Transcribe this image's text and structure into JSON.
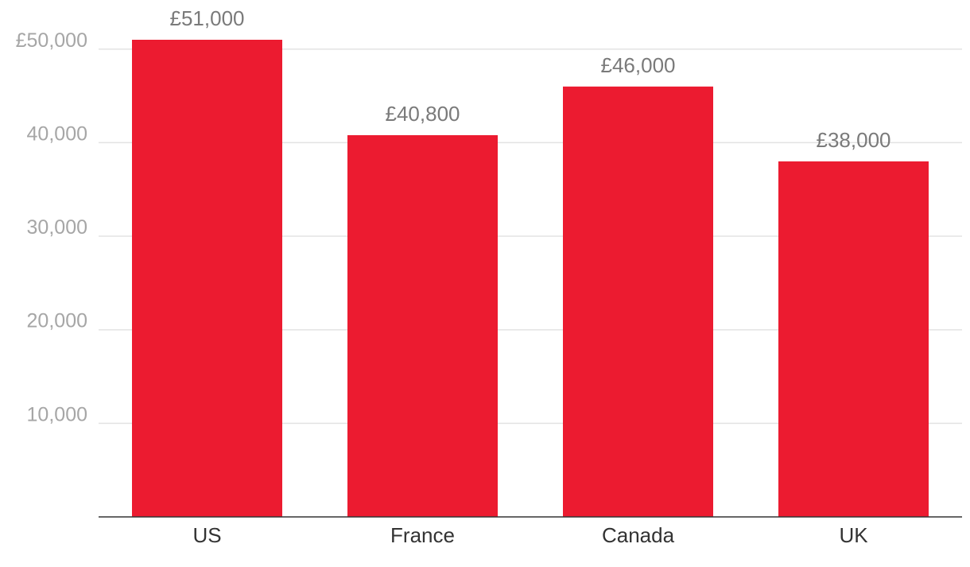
{
  "chart_data": {
    "type": "bar",
    "categories": [
      "US",
      "France",
      "Canada",
      "UK"
    ],
    "values": [
      51000,
      40800,
      46000,
      38000
    ],
    "data_labels": [
      "£51,000",
      "£40,800",
      "£46,000",
      "£38,000"
    ],
    "yticks": [
      10000,
      20000,
      30000,
      40000,
      50000
    ],
    "ytick_labels": [
      "10,000",
      "20,000",
      "30,000",
      "40,000",
      "£50,000"
    ],
    "ylim": [
      0,
      51000
    ],
    "grid": true,
    "legend": "none",
    "title": "",
    "xlabel": "",
    "ylabel": "",
    "colors": {
      "bar": "#ec1b30"
    }
  }
}
